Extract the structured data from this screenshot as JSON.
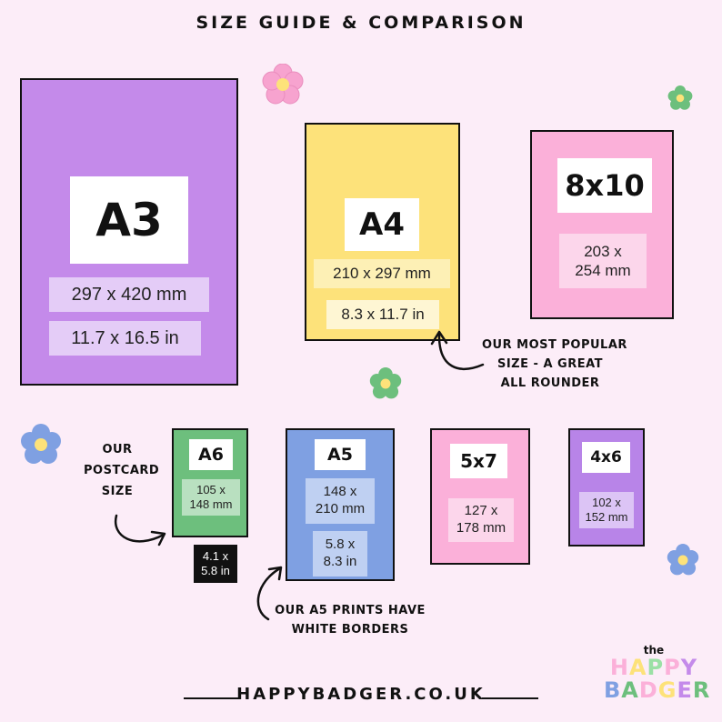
{
  "title": "SIZE GUIDE & COMPARISON",
  "cards": {
    "a3": {
      "name": "A3",
      "line1": "297 x 420 mm",
      "line2": "11.7 x 16.5 in",
      "color": "#c48aea"
    },
    "a4": {
      "name": "A4",
      "line1": "210 x 297 mm",
      "line2": "8.3 x 11.7 in",
      "color": "#fde27a"
    },
    "s8x10": {
      "name": "8x10",
      "line1": "203 x\n254 mm",
      "color": "#fbb0d9"
    },
    "a6": {
      "name": "A6",
      "line1": "105 x\n148 mm",
      "line2": "4.1 x\n5.8 in",
      "color": "#6dbf7d"
    },
    "a5": {
      "name": "A5",
      "line1": "148 x\n210 mm",
      "line2": "5.8 x\n8.3 in",
      "color": "#7fa0e2"
    },
    "s5x7": {
      "name": "5x7",
      "line1": "127 x\n178 mm",
      "color": "#fbb0d9"
    },
    "s4x6": {
      "name": "4x6",
      "line1": "102 x\n152 mm",
      "color": "#b884e8"
    }
  },
  "notes": {
    "popular": "OUR MOST POPULAR\nSIZE - A GREAT\nALL ROUNDER",
    "postcard": "OUR\nPOSTCARD\nSIZE",
    "a5_borders": "OUR A5 PRINTS HAVE\nWHITE BORDERS"
  },
  "footer": "HAPPYBADGER.CO.UK",
  "logo": {
    "the": "the",
    "word1": "HAPPY",
    "word2": "BADGER"
  },
  "icons": [
    "flower-icon",
    "arrow-icon"
  ]
}
